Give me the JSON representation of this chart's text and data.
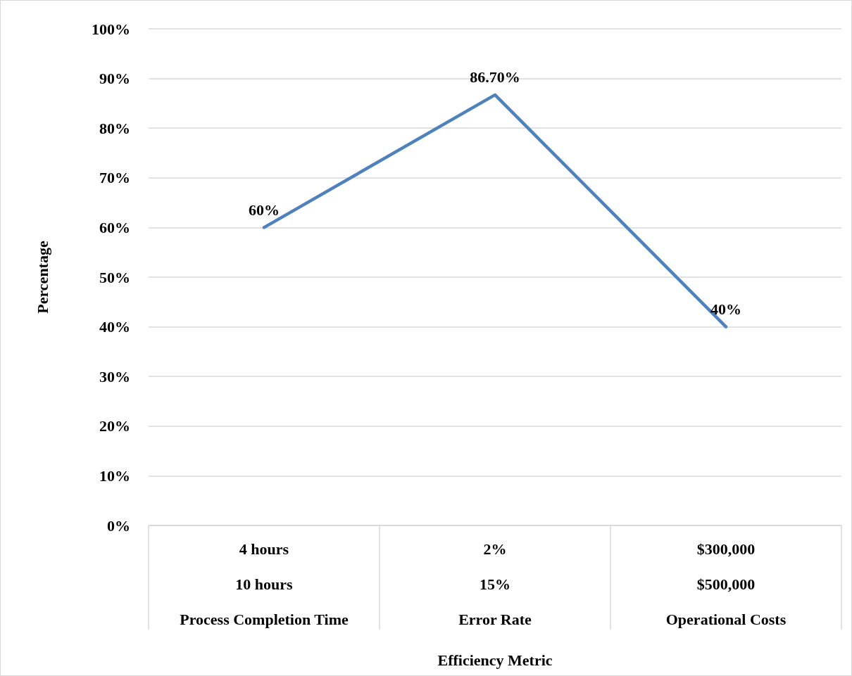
{
  "chart_data": {
    "type": "line",
    "xlabel": "Efficiency Metric",
    "ylabel": "Percentage",
    "categories": [
      "4 hours\n10 hours\nProcess Completion Time",
      "2%\n15%\nError Rate",
      "$300,000\n$500,000\nOperational Costs"
    ],
    "series": [
      {
        "color": "#4f81bd",
        "values": [
          60,
          86.7,
          40
        ],
        "value_labels": [
          "60%",
          "86.70%",
          "40%"
        ]
      }
    ],
    "ylim": [
      0,
      100
    ],
    "yticks": [
      {
        "value": 0,
        "label": "0%"
      },
      {
        "value": 10,
        "label": "10%"
      },
      {
        "value": 20,
        "label": "20%"
      },
      {
        "value": 30,
        "label": "30%"
      },
      {
        "value": 40,
        "label": "40%"
      },
      {
        "value": 50,
        "label": "50%"
      },
      {
        "value": 60,
        "label": "60%"
      },
      {
        "value": 70,
        "label": "70%"
      },
      {
        "value": 80,
        "label": "80%"
      },
      {
        "value": 90,
        "label": "90%"
      },
      {
        "value": 100,
        "label": "100%"
      }
    ],
    "grid": "y",
    "marker": "none",
    "line_style": "solid"
  }
}
